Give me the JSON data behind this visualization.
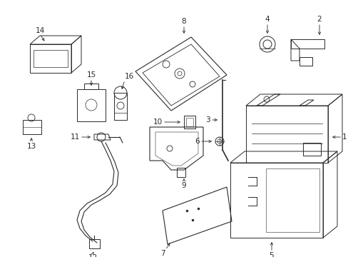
{
  "background_color": "#ffffff",
  "line_color": "#2a2a2a",
  "figsize": [
    4.89,
    3.6
  ],
  "dpi": 100
}
